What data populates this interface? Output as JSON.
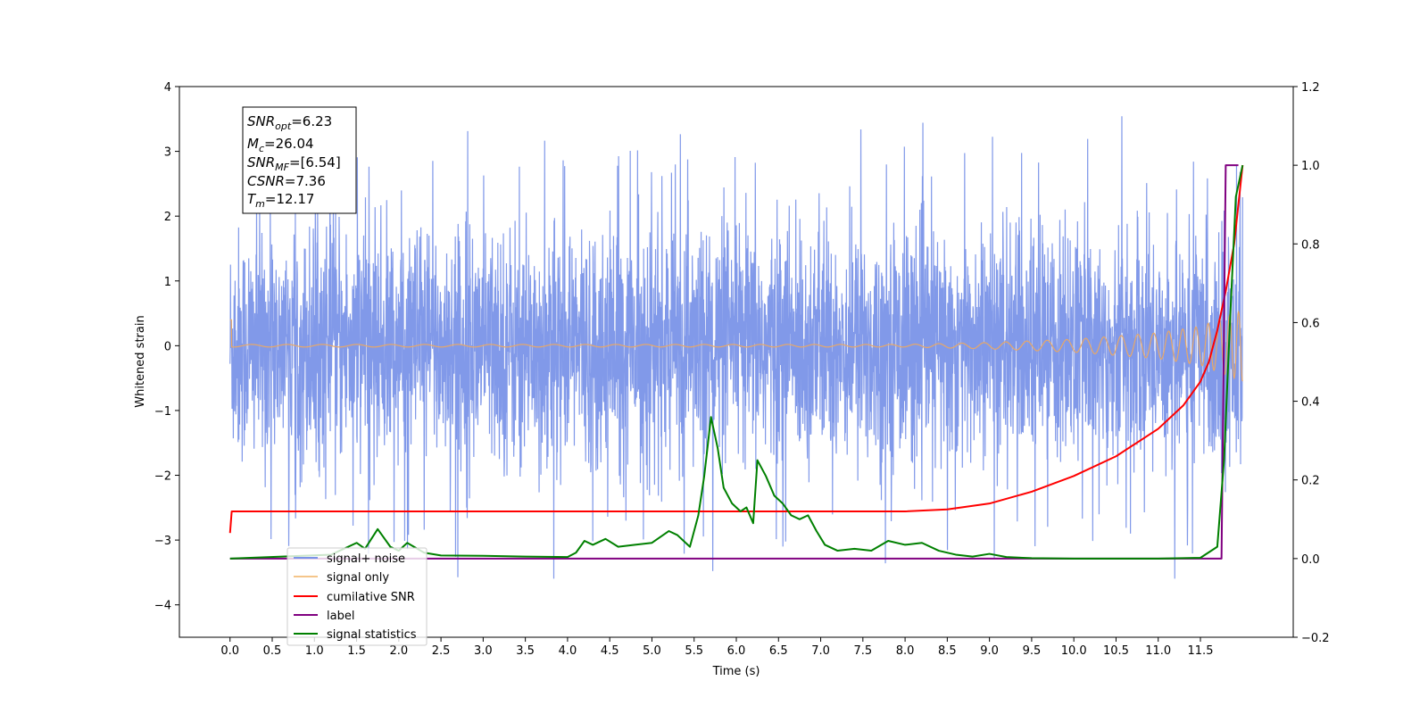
{
  "chart_data": {
    "type": "line",
    "xlabel": "Time (s)",
    "ylabel_left": "Whitened strain",
    "ylabel_right": "",
    "xlim": [
      -0.6,
      12.6
    ],
    "ylim_left": [
      -4.5,
      4.0
    ],
    "ylim_right": [
      -0.2,
      1.2
    ],
    "x_ticks": [
      0.0,
      0.5,
      1.0,
      1.5,
      2.0,
      2.5,
      3.0,
      3.5,
      4.0,
      4.5,
      5.0,
      5.5,
      6.0,
      6.5,
      7.0,
      7.5,
      8.0,
      8.5,
      9.0,
      9.5,
      10.0,
      10.5,
      11.0,
      11.5
    ],
    "x_tick_labels": [
      "0.0",
      "0.5",
      "1.0",
      "1.5",
      "2.0",
      "2.5",
      "3.0",
      "3.5",
      "4.0",
      "4.5",
      "5.0",
      "5.5",
      "6.0",
      "6.5",
      "7.0",
      "7.5",
      "8.0",
      "8.5",
      "9.0",
      "9.5",
      "10.0",
      "10.5",
      "11.0",
      "11.5"
    ],
    "y_left_ticks": [
      4,
      3,
      2,
      1,
      0,
      -1,
      -2,
      -3,
      -4
    ],
    "y_left_tick_labels": [
      "4",
      "3",
      "2",
      "1",
      "0",
      "−1",
      "−2",
      "−3",
      "−4"
    ],
    "y_right_ticks": [
      1.2,
      1.0,
      0.8,
      0.6,
      0.4,
      0.2,
      0.0,
      -0.2
    ],
    "y_right_tick_labels": [
      "1.2",
      "1.0",
      "0.8",
      "0.6",
      "0.4",
      "0.2",
      "0.0",
      "−0.2"
    ],
    "grid": false,
    "legend_position": "lower-left",
    "stats_box": {
      "lines": [
        {
          "base": "SNR",
          "sub": "opt",
          "value": "=6.23"
        },
        {
          "base": "M",
          "sub": "c",
          "value": "=26.04"
        },
        {
          "base": "SNR",
          "sub": "MF",
          "value": "=[6.54]"
        },
        {
          "base": "CSNR",
          "sub": "",
          "value": "=7.36"
        },
        {
          "base": "T",
          "sub": "m",
          "value": "=12.17"
        }
      ]
    },
    "series": [
      {
        "name": "signal+ noise",
        "axis": "left",
        "color": "#7a93e8",
        "description_values": "random noise, amplitude ~±2 with spikes to ±3.6, x 0.0–12.0"
      },
      {
        "name": "signal only",
        "axis": "left",
        "color": "#e8a868",
        "x": [
          0.0,
          8.0,
          9.0,
          10.0,
          11.0,
          11.5,
          12.0
        ],
        "amplitude": [
          0.02,
          0.02,
          0.05,
          0.1,
          0.2,
          0.3,
          0.55
        ]
      },
      {
        "name": "cumilative SNR",
        "axis": "right",
        "color": "#ff0000",
        "x": [
          0.0,
          0.02,
          8.0,
          8.5,
          9.0,
          9.5,
          10.0,
          10.5,
          11.0,
          11.3,
          11.5,
          11.6,
          11.7,
          11.8,
          11.9,
          12.0
        ],
        "y": [
          0.065,
          0.12,
          0.12,
          0.125,
          0.14,
          0.17,
          0.21,
          0.26,
          0.33,
          0.39,
          0.45,
          0.5,
          0.58,
          0.68,
          0.8,
          1.0
        ]
      },
      {
        "name": "label",
        "axis": "right",
        "color": "#800080",
        "x": [
          0.0,
          11.75,
          11.8,
          11.95
        ],
        "y": [
          0.0,
          0.0,
          1.0,
          1.0
        ]
      },
      {
        "name": "signal statistics",
        "axis": "right",
        "color": "#008000",
        "x": [
          0.0,
          1.2,
          1.5,
          1.6,
          1.75,
          1.9,
          2.0,
          2.1,
          2.3,
          2.5,
          3.0,
          3.5,
          4.0,
          4.1,
          4.2,
          4.3,
          4.45,
          4.6,
          4.8,
          5.0,
          5.2,
          5.3,
          5.45,
          5.55,
          5.62,
          5.7,
          5.78,
          5.85,
          5.95,
          6.05,
          6.12,
          6.2,
          6.25,
          6.35,
          6.45,
          6.55,
          6.65,
          6.75,
          6.85,
          6.95,
          7.05,
          7.2,
          7.4,
          7.6,
          7.8,
          8.0,
          8.2,
          8.4,
          8.6,
          8.8,
          9.0,
          9.2,
          9.5,
          10.0,
          11.0,
          11.5,
          11.7,
          11.78,
          11.85,
          11.92,
          12.0
        ],
        "y": [
          0.0,
          0.01,
          0.04,
          0.025,
          0.075,
          0.03,
          0.02,
          0.04,
          0.015,
          0.008,
          0.007,
          0.005,
          0.004,
          0.015,
          0.045,
          0.035,
          0.05,
          0.03,
          0.035,
          0.04,
          0.07,
          0.06,
          0.03,
          0.11,
          0.21,
          0.36,
          0.28,
          0.18,
          0.14,
          0.12,
          0.13,
          0.09,
          0.25,
          0.21,
          0.16,
          0.14,
          0.11,
          0.1,
          0.11,
          0.07,
          0.035,
          0.02,
          0.025,
          0.02,
          0.045,
          0.035,
          0.04,
          0.02,
          0.01,
          0.005,
          0.012,
          0.004,
          0.001,
          0.0,
          0.0,
          0.002,
          0.03,
          0.25,
          0.6,
          0.92,
          1.0
        ]
      }
    ]
  }
}
